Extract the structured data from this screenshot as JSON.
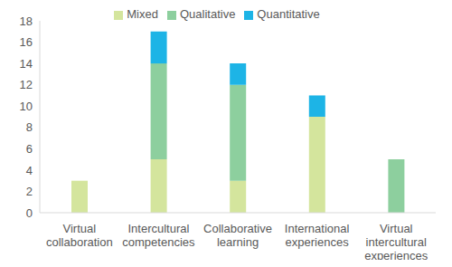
{
  "chart_data": {
    "type": "bar",
    "stacked": true,
    "categories": [
      "Virtual collaboration",
      "Intercultural competencies",
      "Collaborative learning",
      "International experiences",
      "Virtual intercultural experiences"
    ],
    "series": [
      {
        "name": "Mixed",
        "color": "#d4e59d",
        "values": [
          3,
          5,
          3,
          9,
          0
        ]
      },
      {
        "name": "Qualitative",
        "color": "#8dcf9e",
        "values": [
          0,
          9,
          9,
          0,
          5
        ]
      },
      {
        "name": "Quantitative",
        "color": "#1db4e6",
        "values": [
          0,
          3,
          2,
          2,
          0
        ]
      }
    ],
    "ylim": [
      0,
      18
    ],
    "yticks": [
      0,
      2,
      4,
      6,
      8,
      10,
      12,
      14,
      16,
      18
    ],
    "grid": false,
    "legend": "top"
  }
}
